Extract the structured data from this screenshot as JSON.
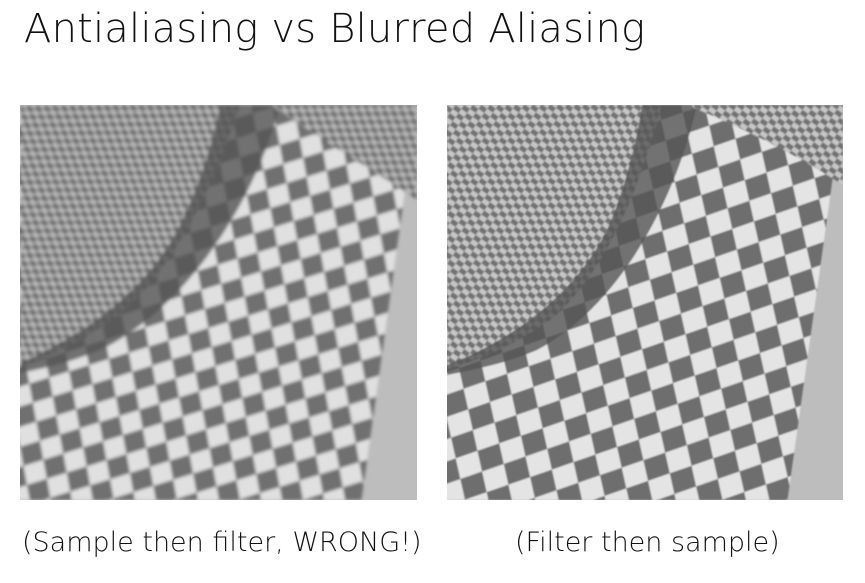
{
  "title": "Antialiasing vs Blurred Aliasing",
  "panels": [
    {
      "caption": "(Sample then filter, WRONG!)"
    },
    {
      "caption": "(Filter then sample)"
    }
  ],
  "colors": {
    "checker_light": "#e2e2e2",
    "checker_dark": "#6e6e6e",
    "background": "#ffffff",
    "text": "#111111"
  }
}
